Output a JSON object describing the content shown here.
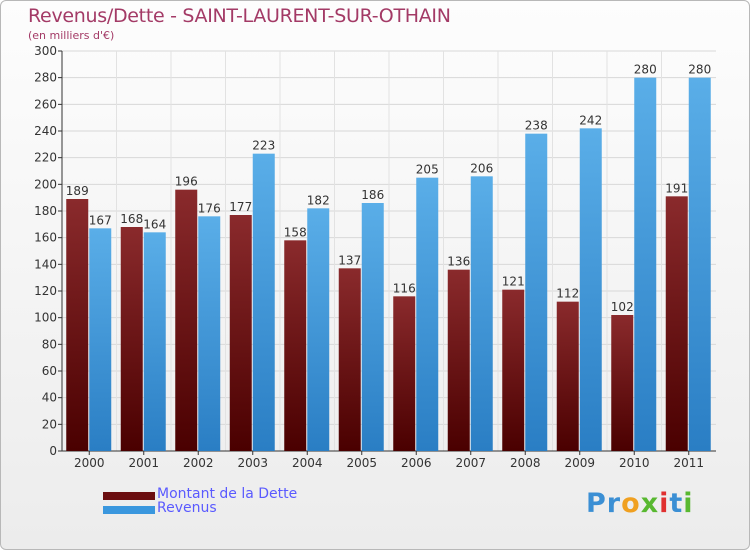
{
  "header": {
    "title": "Revenus/Dette - SAINT-LAURENT-SUR-OTHAIN",
    "subtitle": "(en milliers d'€)"
  },
  "colors": {
    "dette": "#7a1a1c",
    "revenus": "#3a97de",
    "title": "#a33a66",
    "legend_text": "#5a5aff",
    "grid": "#d8d8d8"
  },
  "legend": {
    "items": [
      {
        "label": "Montant de la Dette",
        "color": "#6b0e10"
      },
      {
        "label": "Revenus",
        "color": "#3a97de"
      }
    ]
  },
  "logo": {
    "letters": [
      {
        "ch": "P",
        "color": "#3b8fd4"
      },
      {
        "ch": "r",
        "color": "#3b8fd4"
      },
      {
        "ch": "o",
        "color": "#f0a020"
      },
      {
        "ch": "x",
        "color": "#58b830"
      },
      {
        "ch": "i",
        "color": "#e03030"
      },
      {
        "ch": "t",
        "color": "#3b8fd4"
      },
      {
        "ch": "i",
        "color": "#58b830"
      }
    ]
  },
  "chart_data": {
    "type": "bar",
    "categories": [
      "2000",
      "2001",
      "2002",
      "2003",
      "2004",
      "2005",
      "2006",
      "2007",
      "2008",
      "2009",
      "2010",
      "2011"
    ],
    "series": [
      {
        "name": "Montant de la Dette",
        "values": [
          189,
          168,
          196,
          177,
          158,
          137,
          116,
          136,
          121,
          112,
          102,
          191
        ]
      },
      {
        "name": "Revenus",
        "values": [
          167,
          164,
          176,
          223,
          182,
          186,
          205,
          206,
          238,
          242,
          280,
          280
        ]
      }
    ],
    "yticks": [
      0,
      20,
      40,
      60,
      80,
      100,
      120,
      140,
      160,
      180,
      200,
      220,
      240,
      260,
      280,
      300
    ],
    "ylim": [
      0,
      300
    ],
    "grid": true,
    "legend_position": "bottom-left",
    "title": "Revenus/Dette - SAINT-LAURENT-SUR-OTHAIN",
    "subtitle": "(en milliers d'€)"
  }
}
